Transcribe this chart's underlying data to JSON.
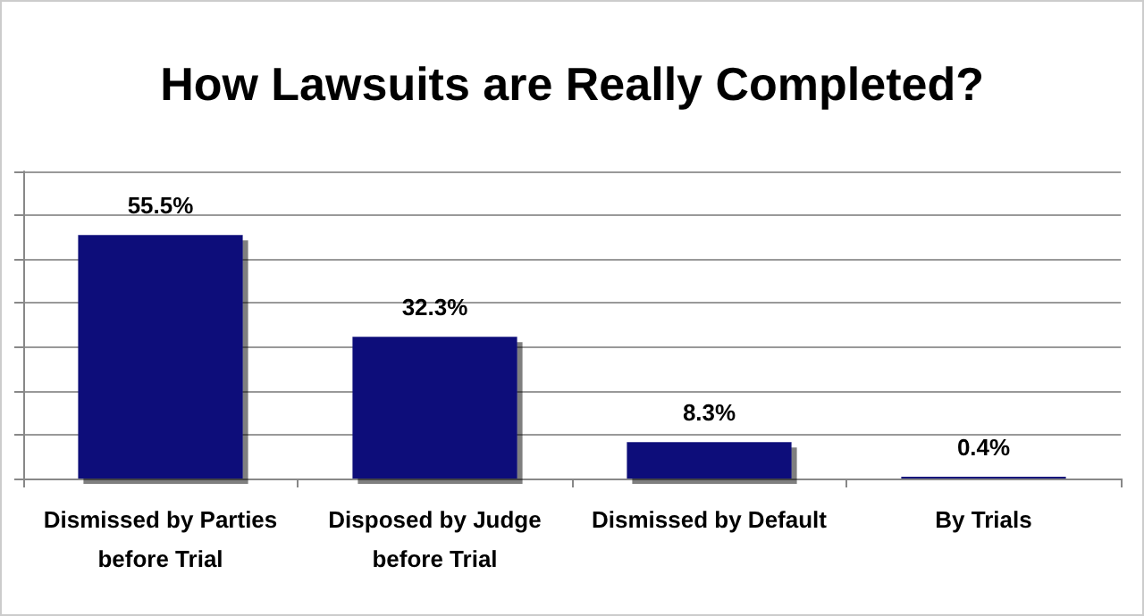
{
  "chart_data": {
    "type": "bar",
    "title": "How Lawsuits are Really Completed?",
    "categories": [
      "Dismissed by Parties\nbefore Trial",
      "Disposed by Judge\nbefore Trial",
      "Dismissed by Default",
      "By Trials"
    ],
    "values": [
      55.5,
      32.3,
      8.3,
      0.4
    ],
    "value_labels": [
      "55.5%",
      "32.3%",
      "8.3%",
      "0.4%"
    ],
    "color": "#0c0c7a",
    "ylim": [
      0,
      70
    ],
    "yticks": [
      {
        "value": 0,
        "label": null
      },
      {
        "value": 10,
        "label": null
      },
      {
        "value": 20,
        "label": null
      },
      {
        "value": 30,
        "label": null
      },
      {
        "value": 40,
        "label": null
      },
      {
        "value": 50,
        "label": null
      },
      {
        "value": 60,
        "label": null
      },
      {
        "value": 70,
        "label": null
      }
    ],
    "tick_labels": "x",
    "grid": "y"
  }
}
